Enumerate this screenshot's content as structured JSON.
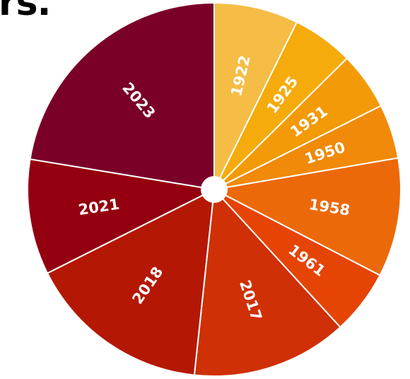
{
  "title_fragment": "rs.",
  "chart_data": {
    "type": "pie",
    "start_angle_deg": 0,
    "direction": "clockwise",
    "center_hole": true,
    "slice_border_color": "#ffffff",
    "slices": [
      {
        "label": "1922",
        "value": 7.3,
        "color": "#f5bd45"
      },
      {
        "label": "1925",
        "value": 5.3,
        "color": "#f5ab0b"
      },
      {
        "label": "1931",
        "value": 5.0,
        "color": "#f29a07"
      },
      {
        "label": "1950",
        "value": 4.7,
        "color": "#f08a08"
      },
      {
        "label": "1958",
        "value": 10.3,
        "color": "#ec6909"
      },
      {
        "label": "1961",
        "value": 5.6,
        "color": "#e54405"
      },
      {
        "label": "2017",
        "value": 13.5,
        "color": "#cf3006"
      },
      {
        "label": "2018",
        "value": 15.9,
        "color": "#b41805"
      },
      {
        "label": "2021",
        "value": 10.0,
        "color": "#94000f"
      },
      {
        "label": "2023",
        "value": 22.4,
        "color": "#7a0028"
      }
    ]
  }
}
